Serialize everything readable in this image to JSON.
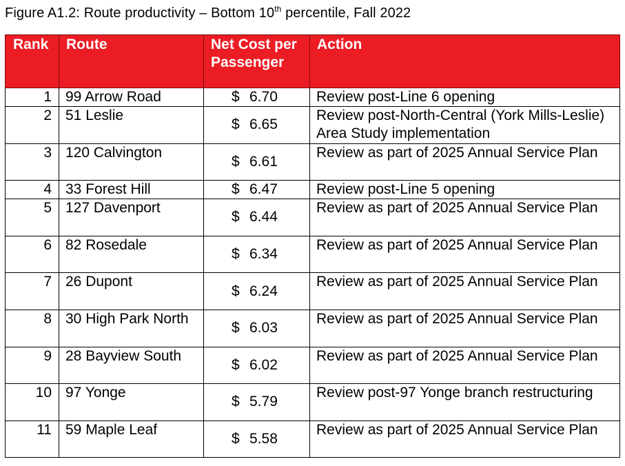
{
  "caption": {
    "prefix": "Figure A1.2: Route productivity – Bottom 10",
    "superscript": "th",
    "suffix": " percentile, Fall 2022"
  },
  "table": {
    "headers": {
      "rank": "Rank",
      "route": "Route",
      "cost": "Net Cost per Passenger",
      "action": "Action"
    },
    "header_color": "#ec1c24",
    "currency_symbol": "$",
    "rows": [
      {
        "rank": "1",
        "route": "99 Arrow Road",
        "cost": "6.70",
        "action": "Review post-Line 6 opening"
      },
      {
        "rank": "2",
        "route": "51 Leslie",
        "cost": "6.65",
        "action": "Review post-North-Central (York Mills-Leslie) Area Study implementation"
      },
      {
        "rank": "3",
        "route": "120 Calvington",
        "cost": "6.61",
        "action": "Review as part of 2025 Annual Service Plan"
      },
      {
        "rank": "4",
        "route": "33 Forest Hill",
        "cost": "6.47",
        "action": "Review post-Line 5 opening"
      },
      {
        "rank": "5",
        "route": "127 Davenport",
        "cost": "6.44",
        "action": "Review as part of 2025 Annual Service Plan"
      },
      {
        "rank": "6",
        "route": "82 Rosedale",
        "cost": "6.34",
        "action": "Review as part of 2025 Annual Service Plan"
      },
      {
        "rank": "7",
        "route": "26 Dupont",
        "cost": "6.24",
        "action": "Review as part of 2025 Annual Service Plan"
      },
      {
        "rank": "8",
        "route": "30 High Park North",
        "cost": "6.03",
        "action": "Review as part of 2025 Annual Service Plan"
      },
      {
        "rank": "9",
        "route": "28 Bayview South",
        "cost": "6.02",
        "action": "Review as part of 2025 Annual Service Plan"
      },
      {
        "rank": "10",
        "route": "97 Yonge",
        "cost": "5.79",
        "action": "Review post-97 Yonge branch restructuring"
      },
      {
        "rank": "11",
        "route": "59 Maple Leaf",
        "cost": "5.58",
        "action": "Review as part of 2025 Annual Service Plan"
      }
    ]
  }
}
